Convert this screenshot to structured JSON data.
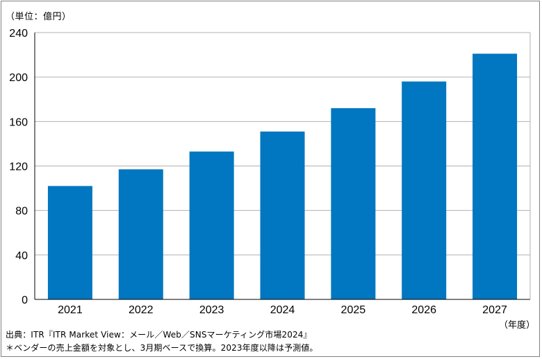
{
  "chart_data": {
    "type": "bar",
    "categories": [
      "2021",
      "2022",
      "2023",
      "2024",
      "2025",
      "2026",
      "2027"
    ],
    "values": [
      102,
      117,
      133,
      151,
      172,
      196,
      221
    ],
    "unit_label": "（単位：億円）",
    "x_unit_label": "（年度）",
    "ylim": [
      0,
      240
    ],
    "yticks": [
      0,
      40,
      80,
      120,
      160,
      200,
      240
    ],
    "grid": true,
    "bar_color": "#0077C0",
    "grid_color": "#B0B0B0"
  },
  "notes": {
    "source": "出典：ITR『ITR Market View：メール／Web／SNSマーケティング市場2024』",
    "footnote": "＊ベンダーの売上金額を対象とし、3月期ベースで換算。2023年度以降は予測値。"
  }
}
